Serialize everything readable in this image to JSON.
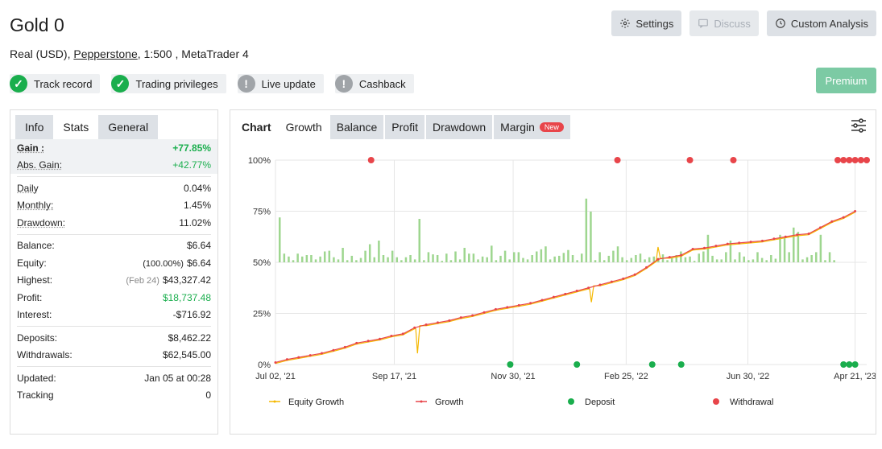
{
  "header": {
    "title": "Gold 0",
    "account_type": "Real (USD)",
    "broker": "Pepperstone",
    "leverage": "1:500",
    "platform": "MetaTrader 4"
  },
  "buttons": {
    "settings": "Settings",
    "discuss": "Discuss",
    "custom_analysis": "Custom Analysis",
    "premium": "Premium"
  },
  "badges": [
    {
      "label": "Track record",
      "status": "ok"
    },
    {
      "label": "Trading privileges",
      "status": "ok"
    },
    {
      "label": "Live update",
      "status": "warn"
    },
    {
      "label": "Cashback",
      "status": "warn"
    }
  ],
  "left_tabs": [
    "Info",
    "Stats",
    "General"
  ],
  "stats": {
    "gain": {
      "label": "Gain :",
      "value": "+77.85%"
    },
    "abs_gain": {
      "label": "Abs. Gain:",
      "value": "+42.77%"
    },
    "daily": {
      "label": "Daily",
      "value": "0.04%"
    },
    "monthly": {
      "label": "Monthly:",
      "value": "1.45%"
    },
    "drawdown": {
      "label": "Drawdown:",
      "value": "11.02%"
    },
    "balance": {
      "label": "Balance:",
      "value": "$6.64"
    },
    "equity": {
      "label": "Equity:",
      "prefix": "(100.00%)",
      "value": "$6.64"
    },
    "highest": {
      "label": "Highest:",
      "prefix": "(Feb 24)",
      "value": "$43,327.42"
    },
    "profit": {
      "label": "Profit:",
      "value": "$18,737.48"
    },
    "interest": {
      "label": "Interest:",
      "value": "-$716.92"
    },
    "deposits": {
      "label": "Deposits:",
      "value": "$8,462.22"
    },
    "withdrawals": {
      "label": "Withdrawals:",
      "value": "$62,545.00"
    },
    "updated": {
      "label": "Updated:",
      "value": "Jan 05 at 00:28"
    },
    "tracking": {
      "label": "Tracking",
      "value": "0"
    }
  },
  "chart_tabs": [
    "Chart",
    "Growth",
    "Balance",
    "Profit",
    "Drawdown",
    "Margin"
  ],
  "new_badge": "New",
  "colors": {
    "growth": "#e8454a",
    "equity_growth": "#f5b800",
    "deposit": "#1aae4d",
    "withdrawal": "#e8454a",
    "bars": "#9ed68f"
  },
  "chart_data": {
    "type": "line",
    "y_ticks": [
      "0%",
      "25%",
      "50%",
      "75%",
      "100%"
    ],
    "x_ticks": [
      "Jul 02, '21",
      "Sep 17, '21",
      "Nov 30, '21",
      "Feb 25, '22",
      "Jun 30, '22",
      "Apr 21, '23"
    ],
    "ylim": [
      0,
      100
    ],
    "legend": [
      "Equity Growth",
      "Growth",
      "Deposit",
      "Withdrawal"
    ],
    "growth": [
      [
        0,
        1
      ],
      [
        2,
        2.5
      ],
      [
        4,
        3.5
      ],
      [
        6,
        4.5
      ],
      [
        8,
        5.5
      ],
      [
        10,
        7
      ],
      [
        12,
        8.5
      ],
      [
        14,
        10.5
      ],
      [
        16,
        11.5
      ],
      [
        18,
        12.5
      ],
      [
        20,
        14
      ],
      [
        22,
        15
      ],
      [
        24,
        18
      ],
      [
        26,
        19.5
      ],
      [
        28,
        20.5
      ],
      [
        30,
        21.5
      ],
      [
        32,
        23
      ],
      [
        34,
        24
      ],
      [
        36,
        25.5
      ],
      [
        38,
        27
      ],
      [
        40,
        28
      ],
      [
        42,
        29
      ],
      [
        44,
        30
      ],
      [
        46,
        31.5
      ],
      [
        48,
        33
      ],
      [
        50,
        34.5
      ],
      [
        52,
        36
      ],
      [
        54,
        37.5
      ],
      [
        56,
        39
      ],
      [
        58,
        40.5
      ],
      [
        60,
        42
      ],
      [
        62,
        44
      ],
      [
        64,
        47.5
      ],
      [
        66,
        51.5
      ],
      [
        68,
        52.5
      ],
      [
        70,
        53.5
      ],
      [
        72,
        56.5
      ],
      [
        74,
        57
      ],
      [
        76,
        58
      ],
      [
        78,
        59
      ],
      [
        80,
        59.5
      ],
      [
        82,
        60
      ],
      [
        84,
        60.5
      ],
      [
        86,
        61.5
      ],
      [
        88,
        62.5
      ],
      [
        90,
        63.5
      ],
      [
        92,
        64
      ],
      [
        94,
        67
      ],
      [
        96,
        70
      ],
      [
        98,
        72
      ],
      [
        100,
        75
      ]
    ],
    "equity_dips": [
      [
        24.5,
        5.5
      ],
      [
        54.5,
        30.5
      ],
      [
        66,
        57.5
      ]
    ],
    "deposits_x": [
      40.5,
      52,
      65,
      70,
      98,
      99,
      100
    ],
    "withdrawals_x": [
      16.5,
      59,
      71.5,
      79,
      97,
      98,
      99,
      100,
      101,
      102
    ],
    "bar_heights": [
      62,
      12,
      8,
      3,
      12,
      8,
      10,
      10,
      4,
      8,
      15,
      16,
      7,
      4,
      20,
      3,
      9,
      3,
      6,
      16,
      25,
      7,
      30,
      10,
      7,
      16,
      7,
      3,
      7,
      10,
      4,
      60,
      3,
      14,
      11,
      10,
      2,
      12,
      3,
      15,
      4,
      20,
      12,
      12,
      4,
      8,
      7,
      23,
      3,
      9,
      16,
      4,
      14,
      14,
      6,
      4,
      10,
      15,
      18,
      22,
      4,
      8,
      9,
      13,
      17,
      10,
      3,
      12,
      88,
      70,
      3,
      14,
      3,
      9,
      16,
      22,
      7,
      3,
      6,
      10,
      12,
      4,
      7,
      8,
      6,
      11,
      3,
      6,
      10,
      15,
      7,
      8,
      2,
      12,
      15,
      38,
      9,
      4,
      4,
      14,
      30,
      4,
      14,
      8,
      3,
      4,
      14,
      6,
      3,
      10,
      5,
      38,
      33,
      14,
      48,
      42,
      4,
      7,
      10,
      14,
      38,
      3,
      14,
      3
    ]
  }
}
